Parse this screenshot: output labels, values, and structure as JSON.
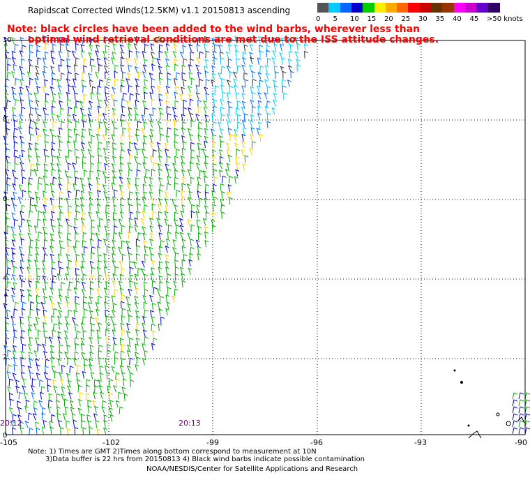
{
  "title": "Rapidscat Corrected Winds(12.5KM) v1.1 20150813 ascending",
  "note": {
    "line1": "Note: black circles have been added to the wind barbs, wherever less than",
    "line2": "optimal wind retrieval conditions are met due to the ISS attitude changes."
  },
  "legend": {
    "colors": [
      "#555555",
      "#00ccff",
      "#0066ff",
      "#0000cc",
      "#00cc00",
      "#ffee00",
      "#ffaa00",
      "#ff6600",
      "#ff0000",
      "#cc0000",
      "#663300",
      "#993300",
      "#ff00ff",
      "#cc00cc",
      "#6600cc",
      "#330066"
    ],
    "labels": [
      "0",
      "5",
      "10",
      "15",
      "20",
      "25",
      "30",
      "35",
      "40",
      "45",
      ">50 knots"
    ]
  },
  "axes": {
    "lon_labels": [
      "-105",
      "-102",
      "-99",
      "-96",
      "-93",
      "-90"
    ],
    "lat_labels": [
      "10",
      "8",
      "6",
      "4",
      "2",
      "0"
    ]
  },
  "times": [
    "20:12",
    "20:13"
  ],
  "footnote": {
    "line1": "Note: 1) Times are GMT 2)Times along bottom correspond to measurement at 10N",
    "line2": "3)Data buffer is 22 hrs from 20150813 4) Black wind barbs indicate possible contamination",
    "line3": "NOAA/NESDIS/Center for Satellite Applications and Research"
  }
}
